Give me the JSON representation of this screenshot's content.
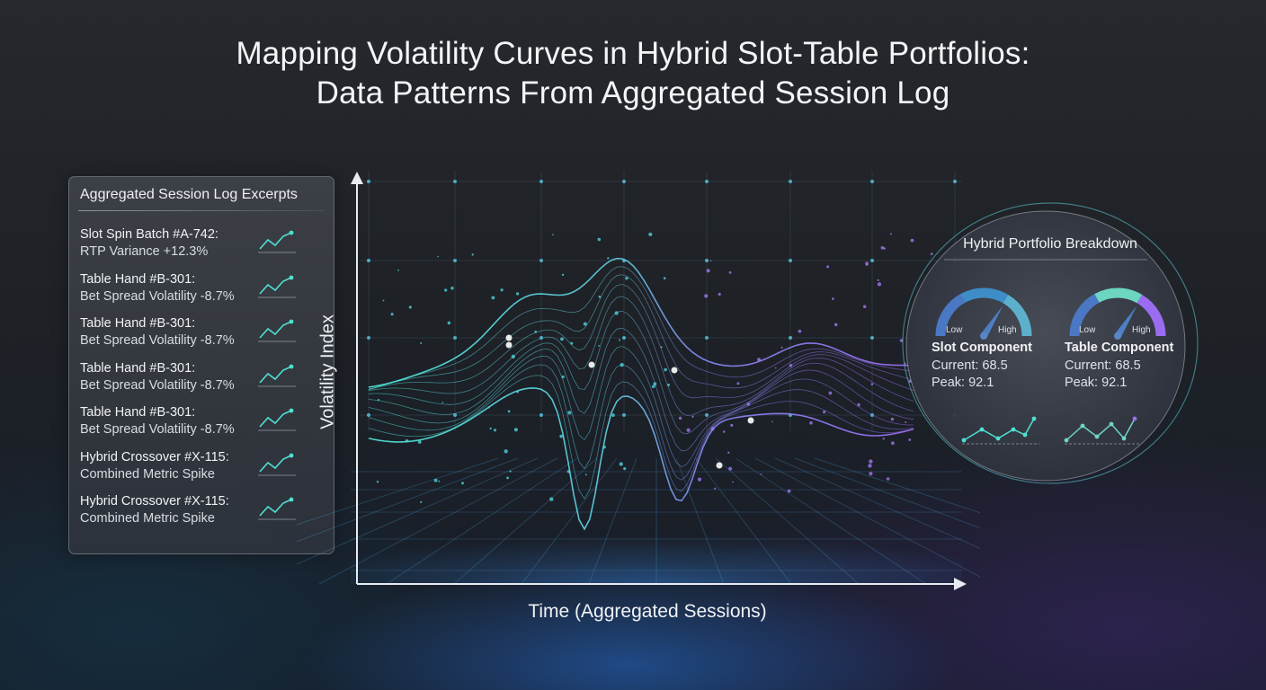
{
  "title": {
    "line1": "Mapping Volatility Curves in Hybrid Slot-Table Portfolios:",
    "line2": "Data Patterns From Aggregated Session Log"
  },
  "log_panel": {
    "title": "Aggregated Session Log Excerpts",
    "items": [
      {
        "name": "Slot Spin Batch #A-742:",
        "detail": "RTP Variance +12.3%"
      },
      {
        "name": "Table Hand #B-301:",
        "detail": "Bet Spread Volatility -8.7%"
      },
      {
        "name": "Table Hand #B-301:",
        "detail": "Bet Spread Volatility -8.7%"
      },
      {
        "name": "Table Hand #B-301:",
        "detail": "Bet Spread Volatility -8.7%"
      },
      {
        "name": "Table Hand #B-301:",
        "detail": "Bet Spread Volatility -8.7%"
      },
      {
        "name": "Hybrid Crossover #X-115:",
        "detail": "Combined Metric Spike"
      },
      {
        "name": "Hybrid Crossover #X-115:",
        "detail": "Combined Metric Spike"
      }
    ]
  },
  "main_chart": {
    "y_label": "Volatility Index",
    "x_label": "Time (Aggregated Sessions)"
  },
  "breakdown": {
    "title": "Hybrid Portfolio Breakdown",
    "components": [
      {
        "name": "Slot Component",
        "current": "Current: 68.5",
        "peak": "Peak: 92.1",
        "low": "Low",
        "high": "High",
        "level": 0.68
      },
      {
        "name": "Table Component",
        "current": "Current: 68.5",
        "peak": "Peak: 92.1",
        "low": "Low",
        "high": "High",
        "level": 0.68
      }
    ]
  },
  "colors": {
    "teal": "#4fe0d2",
    "purple": "#9a6cf0",
    "gauge_blue": "#4a78c4"
  }
}
